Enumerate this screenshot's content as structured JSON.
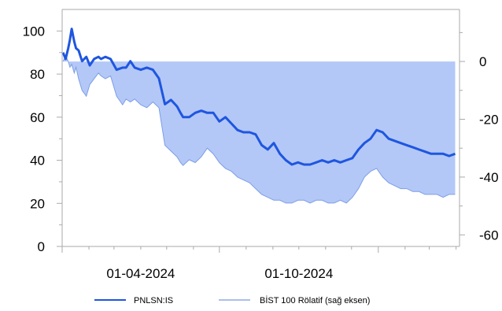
{
  "chart_data": {
    "type": "line",
    "title": "",
    "xlabel": "",
    "ylabel": "",
    "x_tick_labels": [
      "01-04-2024",
      "01-10-2024"
    ],
    "y_left": {
      "ticks": [
        0,
        20,
        40,
        60,
        80,
        100
      ],
      "ylim": [
        0,
        110
      ]
    },
    "y_right": {
      "ticks": [
        0,
        -20,
        -40,
        -60
      ],
      "ylim": [
        -64,
        18
      ]
    },
    "grid": false,
    "legend_position": "bottom",
    "series": [
      {
        "name": "PNLSN:IS",
        "axis": "left",
        "style": "line",
        "color": "#1f56e0",
        "x": [
          "2024-01-02",
          "2024-01-05",
          "2024-01-08",
          "2024-01-10",
          "2024-01-12",
          "2024-01-15",
          "2024-01-17",
          "2024-01-20",
          "2024-01-24",
          "2024-01-29",
          "2024-02-02",
          "2024-02-07",
          "2024-02-12",
          "2024-02-15",
          "2024-02-20",
          "2024-02-26",
          "2024-03-04",
          "2024-03-11",
          "2024-03-15",
          "2024-03-20",
          "2024-03-25",
          "2024-04-01",
          "2024-04-08",
          "2024-04-15",
          "2024-04-22",
          "2024-04-29",
          "2024-05-06",
          "2024-05-13",
          "2024-05-17",
          "2024-05-20",
          "2024-05-27",
          "2024-06-03",
          "2024-06-10",
          "2024-06-17",
          "2024-06-24",
          "2024-07-01",
          "2024-07-08",
          "2024-07-15",
          "2024-07-22",
          "2024-07-29",
          "2024-08-05",
          "2024-08-12",
          "2024-08-19",
          "2024-08-26",
          "2024-09-02",
          "2024-09-09",
          "2024-09-16",
          "2024-09-23",
          "2024-09-30",
          "2024-10-07",
          "2024-10-14",
          "2024-10-21",
          "2024-10-28",
          "2024-11-04",
          "2024-11-11",
          "2024-11-18",
          "2024-11-25",
          "2024-12-02",
          "2024-12-09",
          "2024-12-16",
          "2024-12-23",
          "2024-12-30",
          "2025-01-06",
          "2025-01-13",
          "2025-01-20",
          "2025-01-27",
          "2025-02-03",
          "2025-02-10",
          "2025-02-17",
          "2025-02-24",
          "2025-03-03",
          "2025-03-10",
          "2025-03-17",
          "2025-03-24",
          "2025-03-31"
        ],
        "values": [
          90,
          87,
          92,
          96,
          101,
          95,
          92,
          91,
          86,
          88,
          84,
          87,
          88,
          87,
          88,
          87,
          82,
          83,
          83,
          86,
          83,
          82,
          83,
          82,
          78,
          66,
          68,
          65,
          62,
          60,
          60,
          62,
          63,
          62,
          62,
          58,
          60,
          57,
          54,
          53,
          53,
          52,
          47,
          45,
          48,
          43,
          40,
          38,
          39,
          38,
          38,
          39,
          40,
          39,
          40,
          39,
          40,
          41,
          45,
          48,
          50,
          54,
          53,
          50,
          49,
          48,
          47,
          46,
          45,
          44,
          43,
          43,
          43,
          42,
          43
        ]
      },
      {
        "name": "BİST 100 Rölatif (sağ eksen)",
        "axis": "right",
        "style": "area",
        "baseline": 0,
        "color": "#b3c8f7",
        "x": [
          "2024-01-02",
          "2024-01-05",
          "2024-01-08",
          "2024-01-10",
          "2024-01-12",
          "2024-01-15",
          "2024-01-17",
          "2024-01-20",
          "2024-01-24",
          "2024-01-29",
          "2024-02-02",
          "2024-02-07",
          "2024-02-12",
          "2024-02-15",
          "2024-02-20",
          "2024-02-26",
          "2024-03-04",
          "2024-03-11",
          "2024-03-15",
          "2024-03-20",
          "2024-03-25",
          "2024-04-01",
          "2024-04-08",
          "2024-04-15",
          "2024-04-22",
          "2024-04-29",
          "2024-05-06",
          "2024-05-13",
          "2024-05-17",
          "2024-05-20",
          "2024-05-27",
          "2024-06-03",
          "2024-06-10",
          "2024-06-17",
          "2024-06-24",
          "2024-07-01",
          "2024-07-08",
          "2024-07-15",
          "2024-07-22",
          "2024-07-29",
          "2024-08-05",
          "2024-08-12",
          "2024-08-19",
          "2024-08-26",
          "2024-09-02",
          "2024-09-09",
          "2024-09-16",
          "2024-09-23",
          "2024-09-30",
          "2024-10-07",
          "2024-10-14",
          "2024-10-21",
          "2024-10-28",
          "2024-11-04",
          "2024-11-11",
          "2024-11-18",
          "2024-11-25",
          "2024-12-02",
          "2024-12-09",
          "2024-12-16",
          "2024-12-23",
          "2024-12-30",
          "2025-01-06",
          "2025-01-13",
          "2025-01-20",
          "2025-01-27",
          "2025-02-03",
          "2025-02-10",
          "2025-02-17",
          "2025-02-24",
          "2025-03-03",
          "2025-03-10",
          "2025-03-17",
          "2025-03-24",
          "2025-03-31"
        ],
        "values": [
          0,
          2,
          0,
          -2,
          -1,
          -4,
          -2,
          -6,
          -10,
          -12,
          -8,
          -6,
          -4,
          -5,
          -6,
          -5,
          -12,
          -15,
          -13,
          -14,
          -13,
          -15,
          -16,
          -14,
          -16,
          -29,
          -31,
          -33,
          -35,
          -36,
          -34,
          -35,
          -33,
          -30,
          -32,
          -35,
          -37,
          -38,
          -40,
          -41,
          -42,
          -44,
          -46,
          -47,
          -48,
          -48,
          -49,
          -49,
          -48,
          -48,
          -49,
          -48,
          -48,
          -49,
          -49,
          -48,
          -49,
          -47,
          -44,
          -40,
          -38,
          -37,
          -40,
          -42,
          -43,
          -44,
          -44,
          -45,
          -45,
          -46,
          -46,
          -46,
          -47,
          -46,
          -46
        ]
      }
    ]
  }
}
